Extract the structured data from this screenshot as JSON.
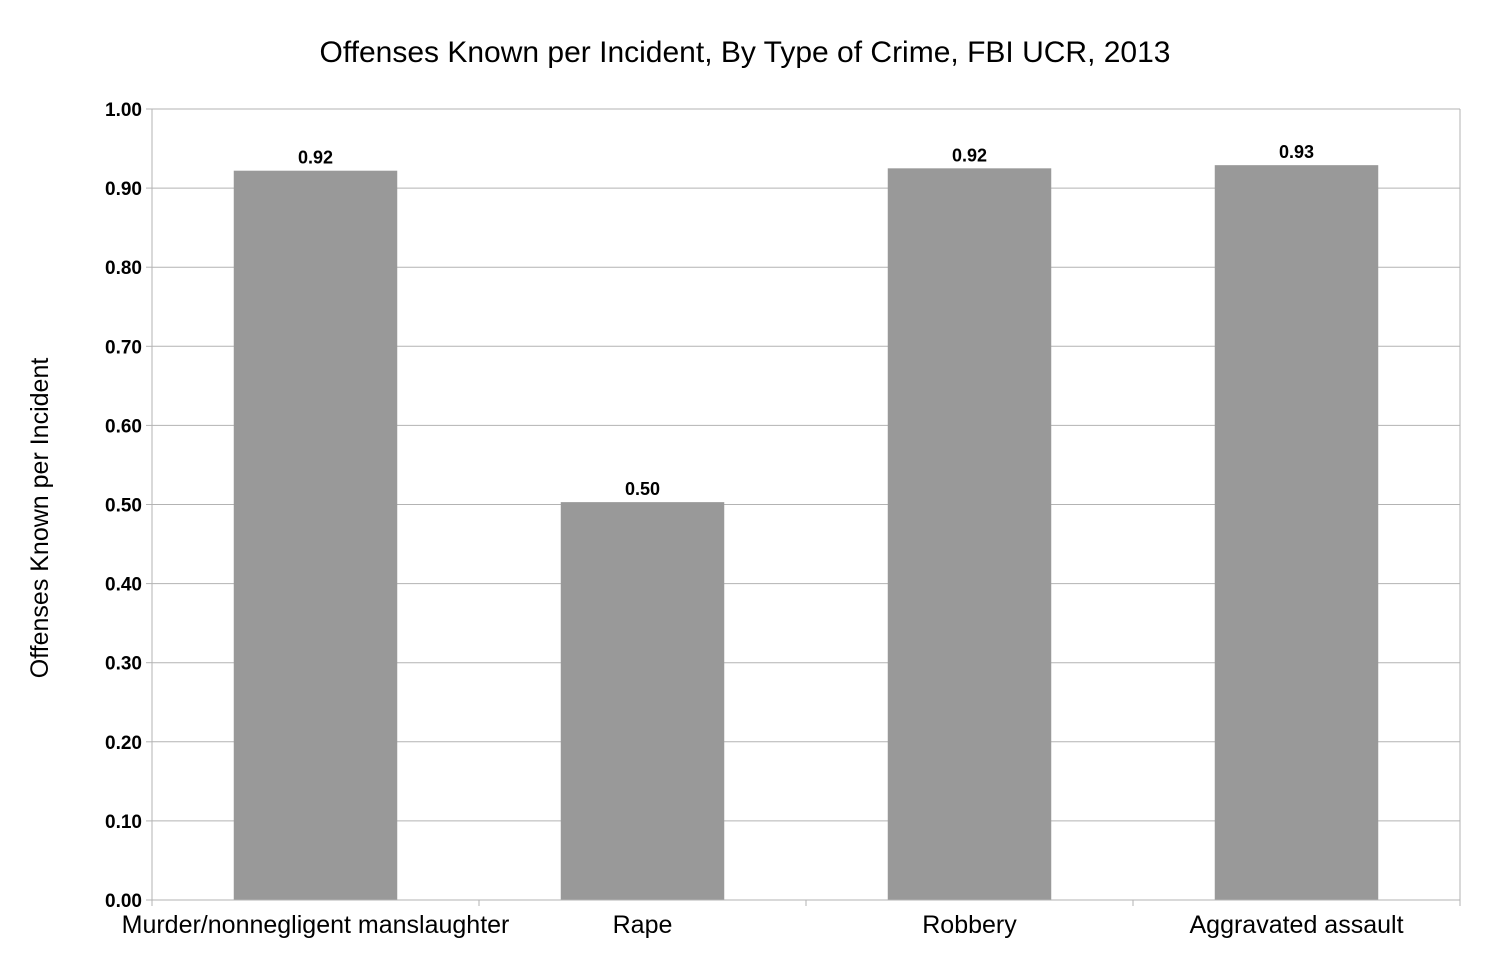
{
  "chart_data": {
    "type": "bar",
    "title": "Offenses Known per Incident, By Type of Crime, FBI UCR, 2013",
    "xlabel": "",
    "ylabel": "Offenses Known per Incident",
    "categories": [
      "Murder/nonnegligent manslaughter",
      "Rape",
      "Robbery",
      "Aggravated assault"
    ],
    "values": [
      0.922,
      0.503,
      0.925,
      0.929
    ],
    "value_labels": [
      "0.92",
      "0.50",
      "0.92",
      "0.93"
    ],
    "ylim": [
      0,
      1
    ],
    "yticks": [
      "0.00",
      "0.10",
      "0.20",
      "0.30",
      "0.40",
      "0.50",
      "0.60",
      "0.70",
      "0.80",
      "0.90",
      "1.00"
    ],
    "grid": true,
    "legend": "none",
    "bar_color": "#999999"
  }
}
